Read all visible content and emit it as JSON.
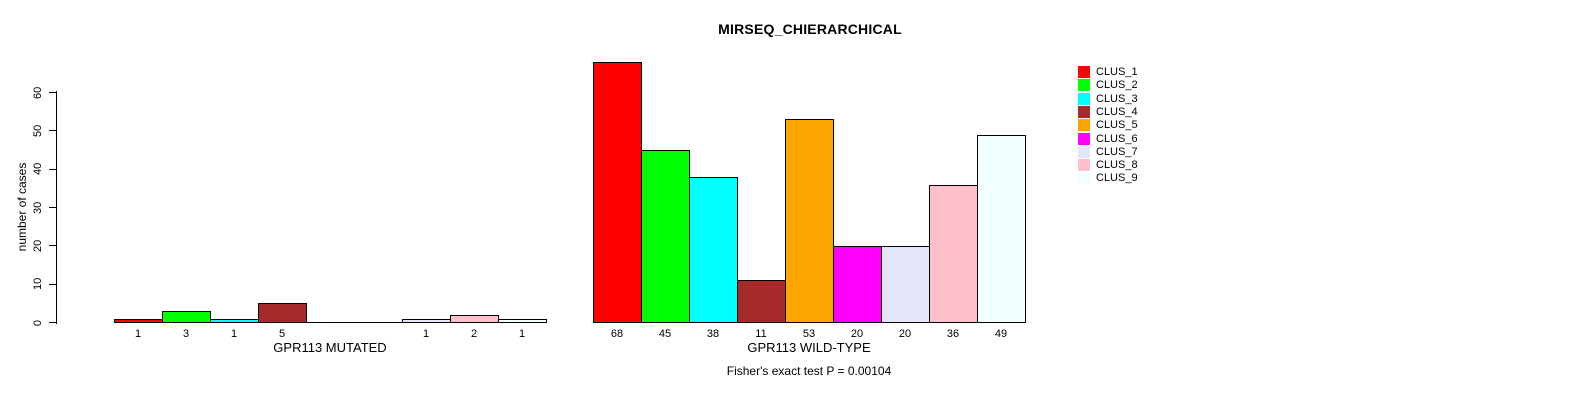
{
  "chart_data": {
    "type": "bar",
    "title": "MIRSEQ_CHIERARCHICAL",
    "ylabel": "number of cases",
    "xlabel": "",
    "ylim": [
      0,
      60
    ],
    "yticks": [
      0,
      10,
      20,
      30,
      40,
      50,
      60
    ],
    "grid": false,
    "legend_position": "right",
    "categories": [
      "CLUS_1",
      "CLUS_2",
      "CLUS_3",
      "CLUS_4",
      "CLUS_5",
      "CLUS_6",
      "CLUS_7",
      "CLUS_8",
      "CLUS_9"
    ],
    "colors": [
      "#FF0000",
      "#00FF00",
      "#00FFFF",
      "#A52A2A",
      "#FFA500",
      "#FF00FF",
      "#E6E6FA",
      "#FFC0CB",
      "#F0FFFF"
    ],
    "groups": [
      {
        "label": "GPR113 MUTATED",
        "values": [
          1,
          3,
          1,
          5,
          0,
          0,
          1,
          2,
          1
        ],
        "bar_labels": [
          "1",
          "3",
          "1",
          "5",
          "",
          "",
          "1",
          "2",
          "1"
        ]
      },
      {
        "label": "GPR113 WILD-TYPE",
        "values": [
          68,
          45,
          38,
          11,
          53,
          20,
          20,
          36,
          49
        ],
        "bar_labels": [
          "68",
          "45",
          "38",
          "11",
          "53",
          "20",
          "20",
          "36",
          "49"
        ]
      }
    ],
    "annotation": "Fisher's exact test P = 0.00104",
    "legend": [
      {
        "label": "CLUS_1",
        "color": "#FF0000"
      },
      {
        "label": "CLUS_2",
        "color": "#00FF00"
      },
      {
        "label": "CLUS_3",
        "color": "#00FFFF"
      },
      {
        "label": "CLUS_4",
        "color": "#A52A2A"
      },
      {
        "label": "CLUS_5",
        "color": "#FFA500"
      },
      {
        "label": "CLUS_6",
        "color": "#FF00FF"
      },
      {
        "label": "CLUS_7",
        "color": "#E6E6FA"
      },
      {
        "label": "CLUS_8",
        "color": "#FFC0CB"
      },
      {
        "label": "CLUS_9",
        "color": "#F0FFFF"
      }
    ]
  }
}
